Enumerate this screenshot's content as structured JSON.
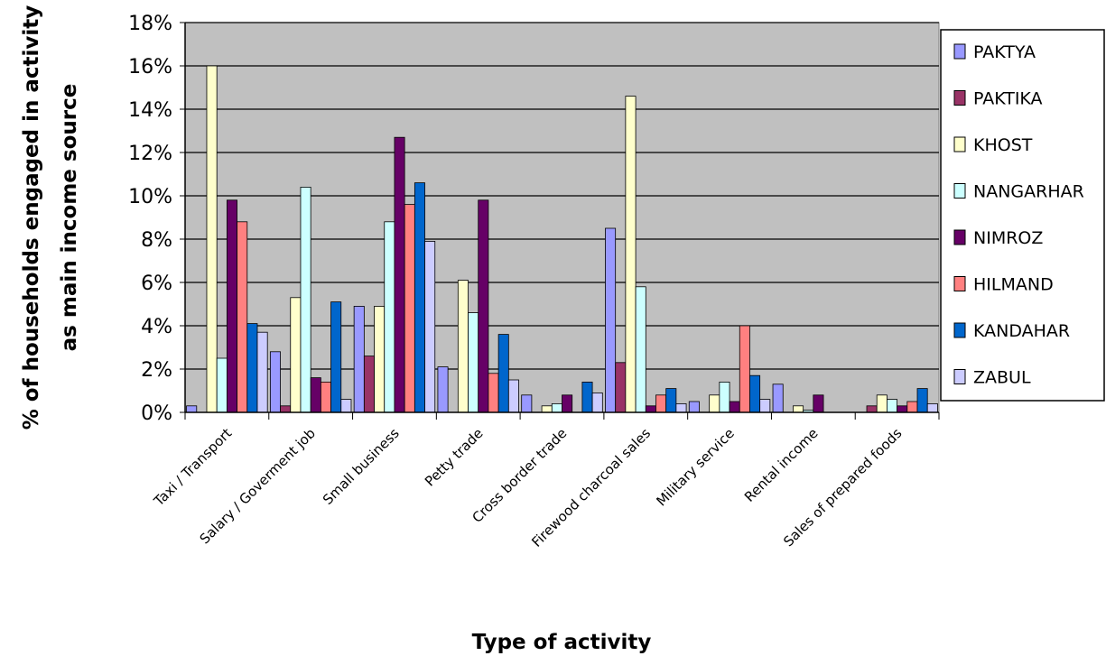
{
  "chart_data": {
    "type": "bar",
    "title": "",
    "xlabel": "Type of activity",
    "ylabel_line1": "% of households engaged in activity",
    "ylabel_line2": "as main income source",
    "ylim": [
      0,
      18
    ],
    "ytick_values": [
      0,
      2,
      4,
      6,
      8,
      10,
      12,
      14,
      16,
      18
    ],
    "ytick_labels": [
      "0%",
      "2%",
      "4%",
      "6%",
      "8%",
      "10%",
      "12%",
      "14%",
      "16%",
      "18%"
    ],
    "grid": true,
    "legend_position": "right",
    "plot_background": "#C0C0C0",
    "categories": [
      "Taxi / Transport",
      "Salary / Goverment job",
      "Small business",
      "Petty trade",
      "Cross border trade",
      "Firewood charcoal sales",
      "Military service",
      "Rental income",
      "Sales of prepared foods"
    ],
    "series": [
      {
        "name": "PAKTYA",
        "color": "#9999FF",
        "values": [
          0.3,
          2.8,
          4.9,
          2.1,
          0.8,
          8.5,
          0.5,
          1.3,
          0.0
        ]
      },
      {
        "name": "PAKTIKA",
        "color": "#993366",
        "values": [
          0.0,
          0.3,
          2.6,
          0.0,
          0.0,
          2.3,
          0.0,
          0.0,
          0.3
        ]
      },
      {
        "name": "KHOST",
        "color": "#FFFFCC",
        "values": [
          16.0,
          5.3,
          4.9,
          6.1,
          0.3,
          14.6,
          0.8,
          0.3,
          0.8
        ]
      },
      {
        "name": "NANGARHAR",
        "color": "#CCFFFF",
        "values": [
          2.5,
          10.4,
          8.8,
          4.6,
          0.4,
          5.8,
          1.4,
          0.1,
          0.6
        ]
      },
      {
        "name": "NIMROZ",
        "color": "#660066",
        "values": [
          9.8,
          1.6,
          12.7,
          9.8,
          0.8,
          0.3,
          0.5,
          0.8,
          0.3
        ]
      },
      {
        "name": "HILMAND",
        "color": "#FF8080",
        "values": [
          8.8,
          1.4,
          9.6,
          1.8,
          0.0,
          0.8,
          4.0,
          0.0,
          0.5
        ]
      },
      {
        "name": "KANDAHAR",
        "color": "#0066CC",
        "values": [
          4.1,
          5.1,
          10.6,
          3.6,
          1.4,
          1.1,
          1.7,
          0.0,
          1.1
        ]
      },
      {
        "name": "ZABUL",
        "color": "#CCCCFF",
        "values": [
          3.7,
          0.6,
          7.9,
          1.5,
          0.9,
          0.4,
          0.6,
          0.0,
          0.4
        ]
      }
    ]
  }
}
